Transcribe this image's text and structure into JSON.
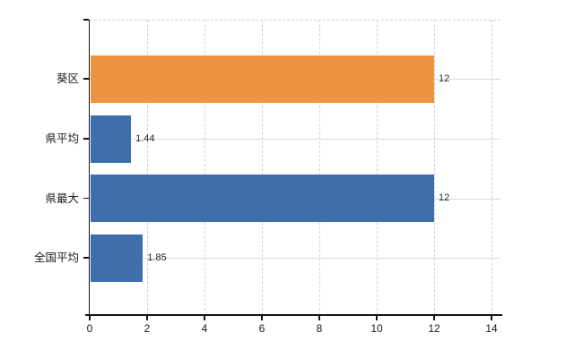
{
  "chart_data": {
    "type": "bar",
    "orientation": "horizontal",
    "title": "",
    "xlabel": "",
    "ylabel": "",
    "categories": [
      "葵区",
      "県平均",
      "県最大",
      "全国平均"
    ],
    "values": [
      12,
      1.44,
      12,
      1.85
    ],
    "value_labels": [
      "12",
      "1.44",
      "12",
      "1.85"
    ],
    "series": [
      {
        "name": "",
        "values": [
          12,
          1.44,
          12,
          1.85
        ]
      }
    ],
    "bar_colors": [
      "#ef943e",
      "#3e6fac",
      "#3e6fac",
      "#3e6fac"
    ],
    "x_ticks": [
      0,
      2,
      4,
      6,
      8,
      10,
      12,
      14
    ],
    "x_tick_labels": [
      "0",
      "2",
      "4",
      "6",
      "8",
      "10",
      "12",
      "14"
    ],
    "xlim": [
      0,
      14.3
    ],
    "grid": true,
    "legend": false,
    "data_labels_shown": true
  },
  "colors": {
    "background": "#ffffff",
    "bar_orange": "#ef943e",
    "bar_blue": "#3e6fac",
    "grid_vertical": "#cfd4d2",
    "grid_horizontal": "#d9d9d9",
    "axis": "#141414",
    "tick_label": "#1a1a1a",
    "value_label": "#262626"
  }
}
